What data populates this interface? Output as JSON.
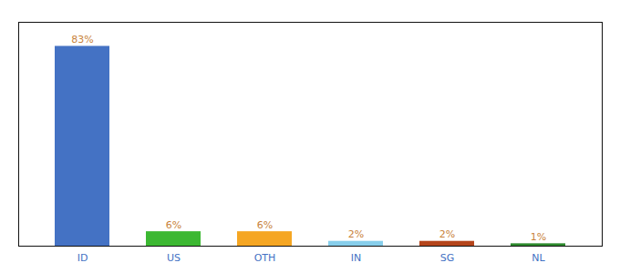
{
  "chart_data": {
    "type": "bar",
    "categories": [
      "ID",
      "US",
      "OTH",
      "IN",
      "SG",
      "NL"
    ],
    "values": [
      83,
      6,
      6,
      2,
      2,
      1
    ],
    "value_labels": [
      "83%",
      "6%",
      "6%",
      "2%",
      "2%",
      "1%"
    ],
    "colors": [
      "#4472c4",
      "#3cb832",
      "#f5a623",
      "#87ceeb",
      "#b5451b",
      "#2d8a2d"
    ],
    "ylim": [
      0,
      93
    ],
    "data_labels": true,
    "tick_labels": "x"
  }
}
